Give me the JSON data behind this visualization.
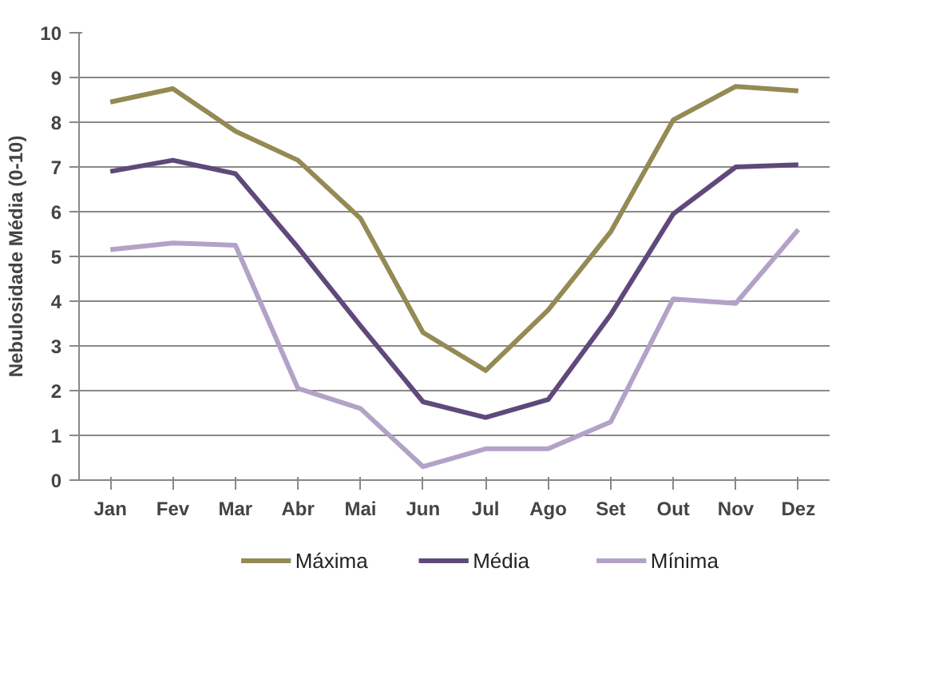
{
  "chart_data": {
    "type": "line",
    "ylabel": "Nebulosidade Média (0-10)",
    "categories": [
      "Jan",
      "Fev",
      "Mar",
      "Abr",
      "Mai",
      "Jun",
      "Jul",
      "Ago",
      "Set",
      "Out",
      "Nov",
      "Dez"
    ],
    "series": [
      {
        "name": "Máxima",
        "color": "#948a54",
        "values": [
          8.45,
          8.75,
          7.8,
          7.15,
          5.85,
          3.3,
          2.45,
          3.8,
          5.55,
          8.05,
          8.8,
          8.7
        ]
      },
      {
        "name": "Média",
        "color": "#5f497a",
        "values": [
          6.9,
          7.15,
          6.85,
          5.2,
          3.45,
          1.75,
          1.4,
          1.8,
          3.7,
          5.95,
          7.0,
          7.05
        ]
      },
      {
        "name": "Mínima",
        "color": "#b3a2c7",
        "values": [
          5.15,
          5.3,
          5.25,
          2.05,
          1.6,
          0.3,
          0.7,
          0.7,
          1.3,
          4.05,
          3.95,
          5.6
        ]
      }
    ],
    "ylim": [
      0,
      10
    ],
    "yticks": [
      0,
      1,
      2,
      3,
      4,
      5,
      6,
      7,
      8,
      9,
      10
    ],
    "grid": "y",
    "legend": "bottom",
    "marker": "none",
    "line_style": "solid"
  }
}
